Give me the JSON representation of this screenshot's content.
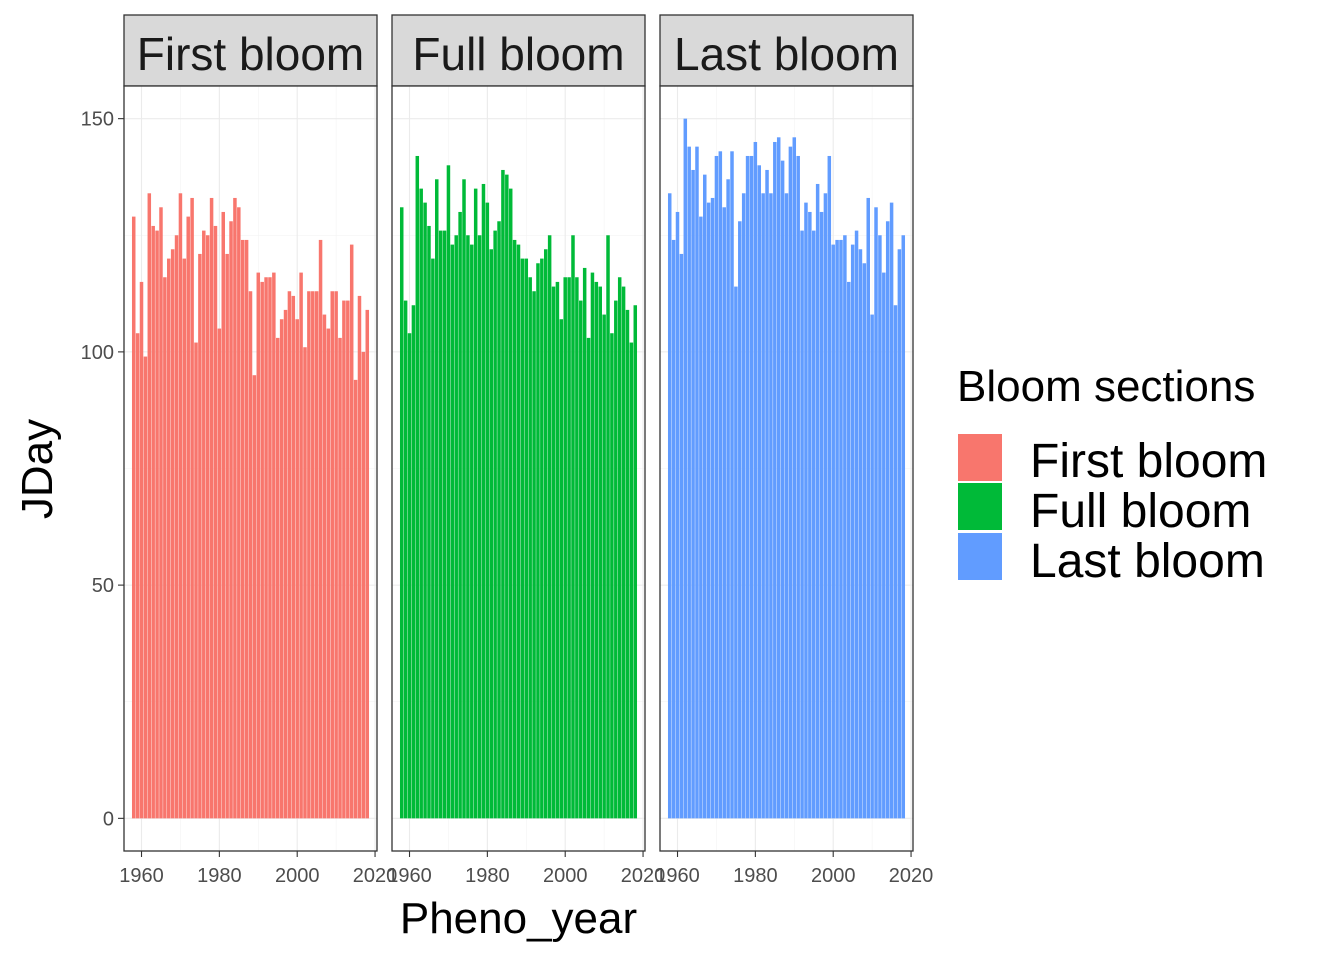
{
  "chart_data": {
    "type": "bar",
    "xlabel": "Pheno_year",
    "ylabel": "JDay",
    "ylim": [
      -7,
      157
    ],
    "y_ticks": [
      0,
      50,
      100,
      150
    ],
    "x_ticks": [
      1960,
      1980,
      2000,
      2020
    ],
    "xlim": [
      1955.5,
      2020.5
    ],
    "grid": true,
    "legend": {
      "title": "Bloom sections",
      "placement": "right",
      "items": [
        {
          "label": "First bloom",
          "color": "#F8766D"
        },
        {
          "label": "Full bloom",
          "color": "#00BA38"
        },
        {
          "label": "Last bloom",
          "color": "#619CFF"
        }
      ]
    },
    "years": [
      1958,
      1959,
      1960,
      1961,
      1962,
      1963,
      1964,
      1965,
      1966,
      1967,
      1968,
      1969,
      1970,
      1971,
      1972,
      1973,
      1974,
      1975,
      1976,
      1977,
      1978,
      1979,
      1980,
      1981,
      1982,
      1983,
      1984,
      1985,
      1986,
      1987,
      1988,
      1989,
      1990,
      1991,
      1992,
      1993,
      1994,
      1995,
      1996,
      1997,
      1998,
      1999,
      2000,
      2001,
      2002,
      2003,
      2004,
      2005,
      2006,
      2007,
      2008,
      2009,
      2010,
      2011,
      2012,
      2013,
      2014,
      2015,
      2016,
      2017,
      2018
    ],
    "series": [
      {
        "name": "First bloom",
        "color": "#F8766D",
        "values": [
          129,
          104,
          115,
          99,
          134,
          127,
          126,
          131,
          116,
          120,
          122,
          125,
          134,
          120,
          129,
          133,
          102,
          121,
          126,
          125,
          133,
          127,
          105,
          130,
          121,
          128,
          133,
          131,
          124,
          124,
          113,
          95,
          117,
          115,
          116,
          116,
          117,
          103,
          107,
          109,
          113,
          112,
          107,
          117,
          101,
          113,
          113,
          113,
          124,
          108,
          105,
          113,
          113,
          103,
          111,
          111,
          123,
          94,
          112,
          100,
          109
        ]
      },
      {
        "name": "Full bloom",
        "color": "#00BA38",
        "values": [
          131,
          111,
          104,
          110,
          142,
          135,
          132,
          127,
          120,
          137,
          126,
          126,
          140,
          123,
          125,
          130,
          137,
          125,
          123,
          135,
          125,
          136,
          132,
          122,
          126,
          128,
          139,
          138,
          135,
          124,
          123,
          120,
          120,
          116,
          113,
          119,
          120,
          122,
          125,
          114,
          115,
          107,
          116,
          116,
          125,
          116,
          111,
          118,
          103,
          117,
          115,
          114,
          108,
          125,
          104,
          111,
          116,
          114,
          109,
          102,
          110
        ]
      },
      {
        "name": "Last bloom",
        "color": "#619CFF",
        "values": [
          134,
          124,
          130,
          121,
          150,
          144,
          139,
          144,
          129,
          138,
          132,
          133,
          142,
          143,
          131,
          137,
          143,
          114,
          128,
          134,
          142,
          142,
          145,
          140,
          134,
          139,
          134,
          145,
          146,
          141,
          134,
          144,
          146,
          142,
          126,
          132,
          130,
          126,
          136,
          130,
          134,
          142,
          123,
          124,
          124,
          125,
          115,
          123,
          126,
          122,
          119,
          133,
          108,
          131,
          125,
          117,
          128,
          132,
          110,
          122,
          125
        ]
      }
    ]
  }
}
